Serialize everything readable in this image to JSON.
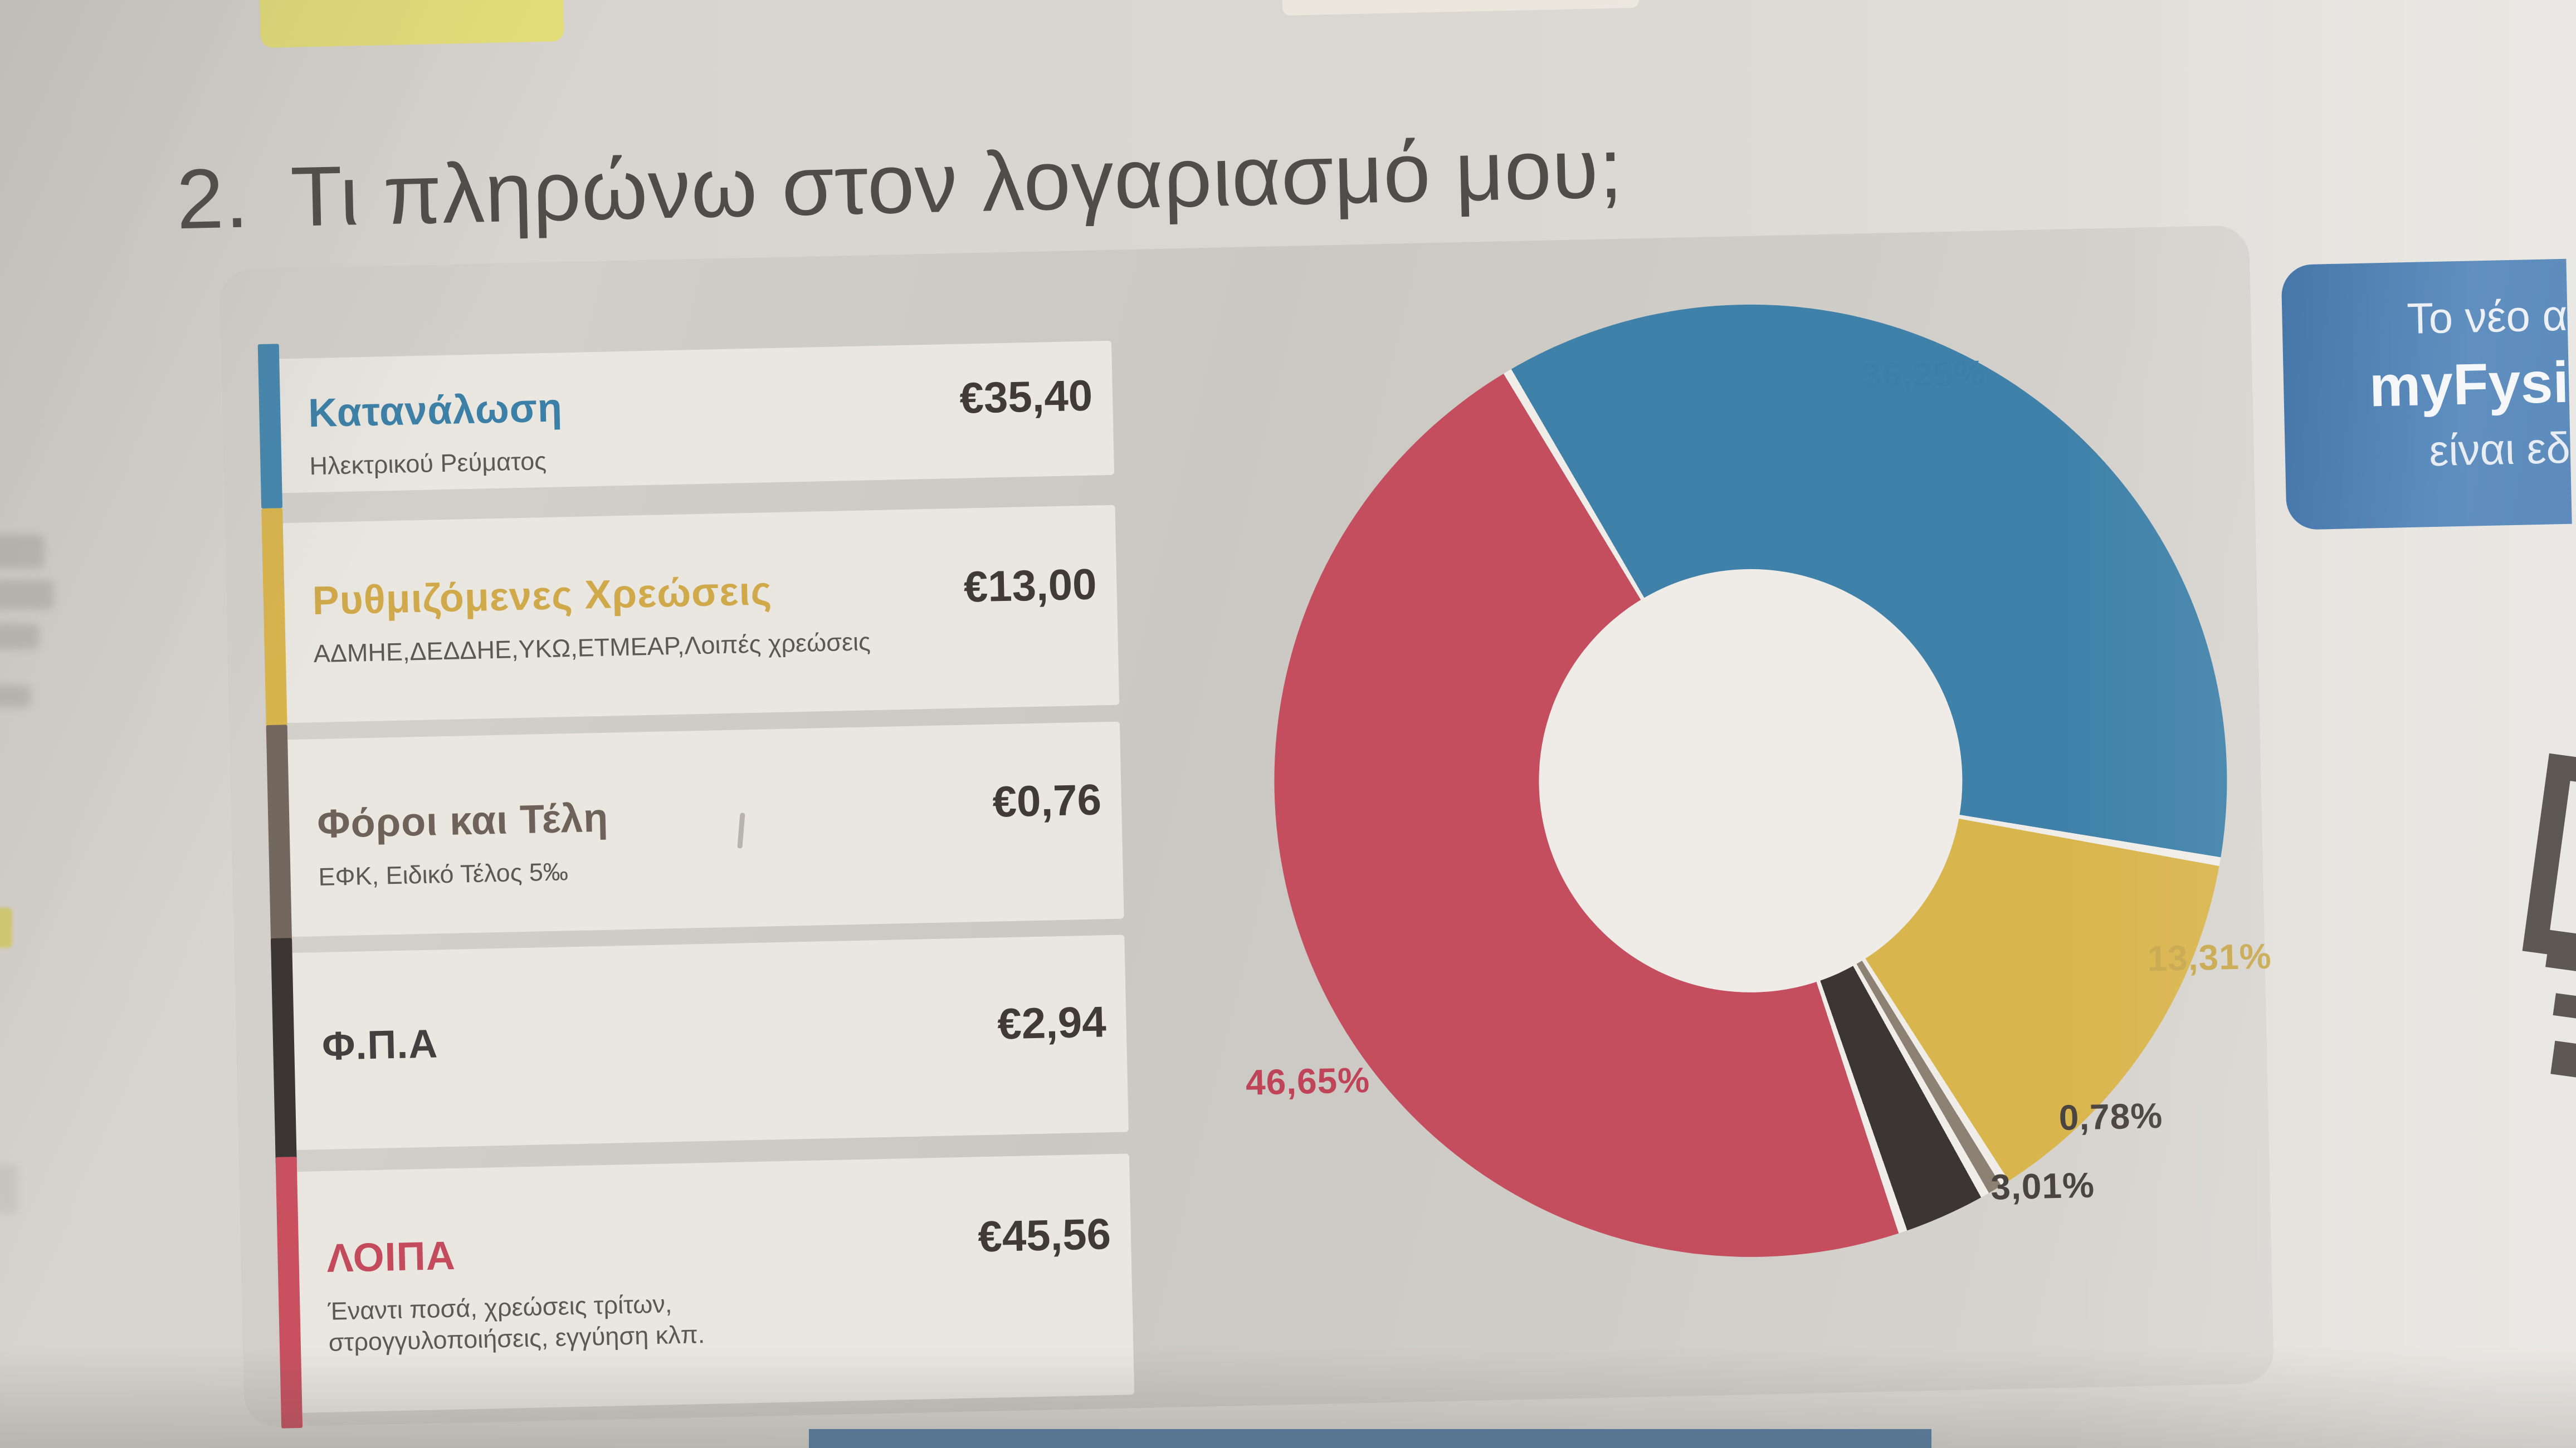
{
  "page": {
    "title_number": "2.",
    "title_text": "Τι πληρώνω στον λογαριασμό μου;"
  },
  "legend": {
    "items": [
      {
        "label": "Κατανάλωση",
        "sublabel": "Ηλεκτρικού Ρεύματος",
        "value": "€35,40",
        "color": "#4588af"
      },
      {
        "label": "Ρυθμιζόμενες Χρεώσεις",
        "sublabel": "ΑΔΜΗΕ,ΔΕΔΔΗΕ,ΥΚΩ,ΕΤΜΕΑΡ,Λοιπές χρεώσεις",
        "value": "€13,00",
        "color": "#d9b54d"
      },
      {
        "label": "Φόροι και Τέλη",
        "sublabel": "ΕΦΚ, Ειδικό Τέλος 5‰",
        "value": "€0,76",
        "color": "#74685e"
      },
      {
        "label": "Φ.Π.Α",
        "sublabel": "",
        "value": "€2,94",
        "color": "#3b3533"
      },
      {
        "label": "ΛΟΙΠΑ",
        "sublabel": "Έναντι ποσά, χρεώσεις τρίτων,\nστρογγυλοποιήσεις, εγγύηση κλπ.",
        "value": "€45,56",
        "color": "#c8505f"
      }
    ]
  },
  "chart_data": {
    "type": "pie",
    "donut": true,
    "title": "",
    "categories": [
      "Κατανάλωση",
      "Ρυθμιζόμενες Χρεώσεις",
      "Φόροι και Τέλη",
      "Φ.Π.Α",
      "ΛΟΙΠΑ"
    ],
    "values": [
      36.25,
      13.31,
      0.78,
      3.01,
      46.65
    ],
    "labels": [
      "36,25%",
      "13,31%",
      "0,78%",
      "3,01%",
      "46,65%"
    ],
    "amounts": [
      "€35,40",
      "€13,00",
      "€0,76",
      "€2,94",
      "€45,56"
    ],
    "colors": [
      "#3f81a9",
      "#d9b54d",
      "#8d8174",
      "#3b3533",
      "#c54e5e"
    ],
    "gap_color": "#f0ede8",
    "slice_gap_percent": 0.3,
    "start_angle_deg": -30,
    "legend_position": "left"
  },
  "banner": {
    "line1": "Το νέο α",
    "line2": "myFysi",
    "line3": "είναι εδ",
    "bg_color": "#3b72ad"
  },
  "colors": {
    "paper": "#dad6d1",
    "panel": "#cfccc7",
    "card": "#eae7e1",
    "title_text": "#504c49",
    "value_text": "#403b37",
    "bottom_strip": "#4e7aa1"
  }
}
